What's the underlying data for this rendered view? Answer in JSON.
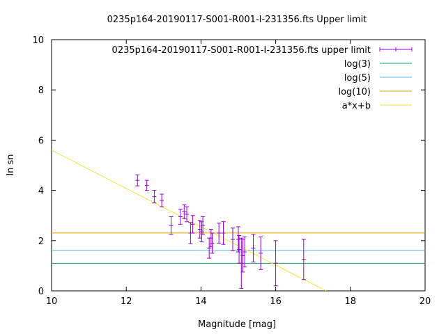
{
  "chart_data": {
    "type": "scatter",
    "title": "0235p164-20190117-S001-R001-I-231356.fts Upper limit",
    "xlabel": "Magnitude [mag]",
    "ylabel": "ln sn",
    "xlim": [
      10,
      20
    ],
    "ylim": [
      0,
      10
    ],
    "x_ticks": [
      10,
      12,
      14,
      16,
      18,
      20
    ],
    "y_ticks": [
      0,
      2,
      4,
      6,
      8,
      10
    ],
    "grid": false,
    "legend_position": "top-right",
    "series": [
      {
        "name": "0235p164-20190117-S001-R001-I-231356.fts upper limit",
        "kind": "errorbar",
        "color": "#9400d3",
        "points": [
          {
            "x": 12.3,
            "y": 4.4,
            "err": 0.22
          },
          {
            "x": 12.55,
            "y": 4.2,
            "err": 0.2
          },
          {
            "x": 12.75,
            "y": 3.75,
            "err": 0.25
          },
          {
            "x": 12.95,
            "y": 3.6,
            "err": 0.25
          },
          {
            "x": 13.2,
            "y": 2.6,
            "err": 0.35
          },
          {
            "x": 13.45,
            "y": 2.95,
            "err": 0.3
          },
          {
            "x": 13.55,
            "y": 3.15,
            "err": 0.28
          },
          {
            "x": 13.62,
            "y": 3.05,
            "err": 0.3
          },
          {
            "x": 13.72,
            "y": 2.3,
            "err": 0.42
          },
          {
            "x": 13.78,
            "y": 2.65,
            "err": 0.35
          },
          {
            "x": 13.97,
            "y": 2.45,
            "err": 0.35
          },
          {
            "x": 14.02,
            "y": 2.35,
            "err": 0.4
          },
          {
            "x": 14.05,
            "y": 2.6,
            "err": 0.35
          },
          {
            "x": 14.22,
            "y": 1.7,
            "err": 0.4
          },
          {
            "x": 14.27,
            "y": 2.1,
            "err": 0.35
          },
          {
            "x": 14.3,
            "y": 1.9,
            "err": 0.4
          },
          {
            "x": 14.48,
            "y": 2.3,
            "err": 0.4
          },
          {
            "x": 14.6,
            "y": 2.3,
            "err": 0.45
          },
          {
            "x": 14.85,
            "y": 2.05,
            "err": 0.45
          },
          {
            "x": 15.0,
            "y": 2.05,
            "err": 0.5
          },
          {
            "x": 15.02,
            "y": 1.65,
            "err": 0.55
          },
          {
            "x": 15.08,
            "y": 1.1,
            "err": 1.0
          },
          {
            "x": 15.12,
            "y": 1.4,
            "err": 0.65
          },
          {
            "x": 15.17,
            "y": 1.55,
            "err": 0.6
          },
          {
            "x": 15.4,
            "y": 1.7,
            "err": 0.55
          },
          {
            "x": 15.6,
            "y": 1.5,
            "err": 0.65
          },
          {
            "x": 16.0,
            "y": 1.1,
            "err": 0.9
          },
          {
            "x": 16.75,
            "y": 1.25,
            "err": 0.8
          }
        ]
      },
      {
        "name": "log(3)",
        "kind": "hline",
        "y": 1.0986,
        "color": "#009e73"
      },
      {
        "name": "log(5)",
        "kind": "hline",
        "y": 1.6094,
        "color": "#56b4e9"
      },
      {
        "name": "log(10)",
        "kind": "hline",
        "y": 2.3026,
        "color": "#e69f00"
      },
      {
        "name": "a*x+b",
        "kind": "line",
        "x": [
          10,
          17.35
        ],
        "y": [
          5.6,
          0.0
        ],
        "color": "#f0e442"
      }
    ]
  }
}
